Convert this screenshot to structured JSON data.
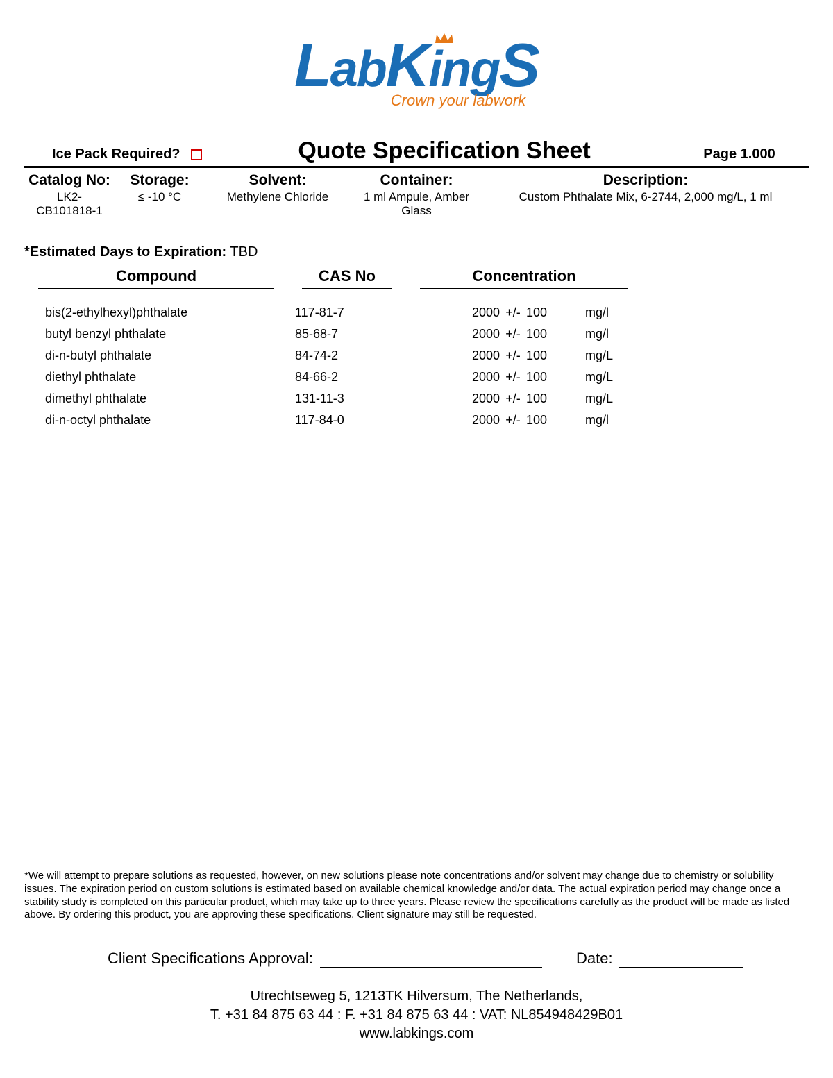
{
  "logo": {
    "brand_main": "LabKingS",
    "tagline": "Crown your labwork",
    "brand_color": "#1a6db5",
    "accent_color": "#e67817"
  },
  "header": {
    "ice_pack_label": "Ice Pack Required?",
    "ice_pack_checked": false,
    "title": "Quote Specification Sheet",
    "page_label": "Page 1.000"
  },
  "meta": {
    "catalog": {
      "label": "Catalog No:",
      "value": "LK2-CB101818-1"
    },
    "storage": {
      "label": "Storage:",
      "value": "≤ -10 °C"
    },
    "solvent": {
      "label": "Solvent:",
      "value": "Methylene Chloride"
    },
    "container": {
      "label": "Container:",
      "value": "1 ml Ampule, Amber Glass"
    },
    "description": {
      "label": "Description:",
      "value": "Custom Phthalate Mix, 6-2744, 2,000 mg/L, 1 ml"
    }
  },
  "expiration": {
    "label": "*Estimated Days to Expiration:",
    "value": "TBD"
  },
  "table": {
    "headers": {
      "compound": "Compound",
      "cas": "CAS No",
      "concentration": "Concentration"
    },
    "rows": [
      {
        "compound": "bis(2-ethylhexyl)phthalate",
        "cas": "117-81-7",
        "value": "2000",
        "pm": "+/-",
        "tol": "100",
        "unit": "mg/l"
      },
      {
        "compound": "butyl benzyl phthalate",
        "cas": "85-68-7",
        "value": "2000",
        "pm": "+/-",
        "tol": "100",
        "unit": "mg/l"
      },
      {
        "compound": "di-n-butyl phthalate",
        "cas": "84-74-2",
        "value": "2000",
        "pm": "+/-",
        "tol": "100",
        "unit": "mg/L"
      },
      {
        "compound": "diethyl phthalate",
        "cas": "84-66-2",
        "value": "2000",
        "pm": "+/-",
        "tol": "100",
        "unit": "mg/L"
      },
      {
        "compound": "dimethyl phthalate",
        "cas": "131-11-3",
        "value": "2000",
        "pm": "+/-",
        "tol": "100",
        "unit": "mg/L"
      },
      {
        "compound": "di-n-octyl phthalate",
        "cas": "117-84-0",
        "value": "2000",
        "pm": "+/-",
        "tol": "100",
        "unit": "mg/l"
      }
    ]
  },
  "footer": {
    "disclaimer": "*We will attempt to prepare solutions as requested, however, on new solutions please note concentrations and/or solvent may change due to chemistry or solubility issues. The expiration period on custom solutions is estimated based on available chemical knowledge and/or data. The actual expiration period may change once a stability study is completed on this particular product, which may take up to three years. Please review the specifications carefully as the product will be made as listed above. By ordering this product, you are approving these specifications. Client signature may still be requested.",
    "approval_label": "Client Specifications Approval:",
    "date_label": "Date:",
    "address_line1": "Utrechtseweg 5, 1213TK Hilversum, The Netherlands,",
    "address_line2": "T. +31 84 875 63 44 : F. +31 84 875 63 44 : VAT: NL854948429B01",
    "website": "www.labkings.com"
  }
}
